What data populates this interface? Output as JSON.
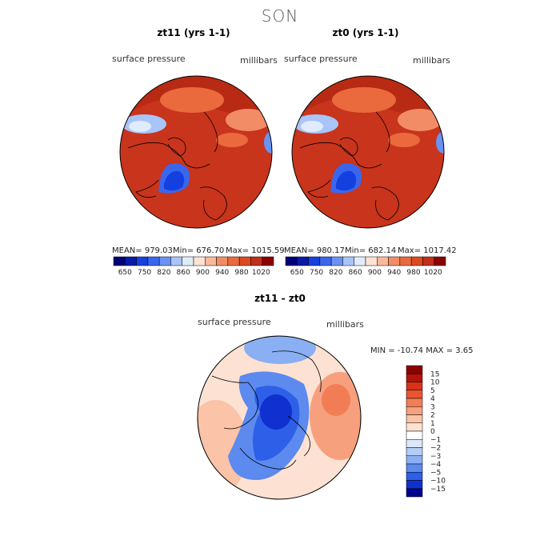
{
  "season": "SON",
  "colors": {
    "dark_red": "#8b0000",
    "red": "#c0301a",
    "orange_red": "#dd4a1f",
    "blue": "#1540e0",
    "navy": "#00007a",
    "white": "#ffffff"
  },
  "chart_data": [
    {
      "type": "heatmap",
      "title": "zt11 (yrs 1-1)",
      "variable_label": "surface pressure",
      "units_label": "millibars",
      "stats": {
        "mean": "MEAN= 979.03",
        "min": "Min= 676.70",
        "max": "Max= 1015.59"
      },
      "colorbar": {
        "levels": [
          650,
          750,
          820,
          860,
          900,
          940,
          980,
          1020
        ],
        "tick_labels": [
          "650",
          "750",
          "820",
          "860",
          "900",
          "940",
          "980",
          "1020"
        ],
        "colors": [
          "#00007a",
          "#0a1aa8",
          "#1540e0",
          "#3a66ee",
          "#6a92f4",
          "#a8c4f8",
          "#e0ecfc",
          "#fde3d4",
          "#f8b89a",
          "#f28c66",
          "#ea6a3e",
          "#dd4a1f",
          "#c0301a",
          "#8b0000"
        ]
      }
    },
    {
      "type": "heatmap",
      "title": "zt0 (yrs 1-1)",
      "variable_label": "surface pressure",
      "units_label": "millibars",
      "stats": {
        "mean": "MEAN= 980.17",
        "min": "Min= 682.14",
        "max": "Max= 1017.42"
      },
      "colorbar": {
        "levels": [
          650,
          750,
          820,
          860,
          900,
          940,
          980,
          1020
        ],
        "tick_labels": [
          "650",
          "750",
          "820",
          "860",
          "900",
          "940",
          "980",
          "1020"
        ],
        "colors": [
          "#00007a",
          "#0a1aa8",
          "#1540e0",
          "#3a66ee",
          "#6a92f4",
          "#a8c4f8",
          "#e0ecfc",
          "#fde3d4",
          "#f8b89a",
          "#f28c66",
          "#ea6a3e",
          "#dd4a1f",
          "#c0301a",
          "#8b0000"
        ]
      }
    },
    {
      "type": "heatmap",
      "title": "zt11 - zt0",
      "variable_label": "surface pressure",
      "units_label": "millibars",
      "stats": {
        "min_max": "MIN = -10.74 MAX =   3.65"
      },
      "colorbar": {
        "tick_labels": [
          "15",
          "10",
          "5",
          "4",
          "3",
          "2",
          "1",
          "0",
          "−1",
          "−2",
          "−3",
          "−4",
          "−5",
          "−10",
          "−15"
        ],
        "colors": [
          "#8b0000",
          "#b3140a",
          "#d8321b",
          "#e85530",
          "#f27d55",
          "#f7a07e",
          "#fbc3a7",
          "#fde2d3",
          "#ffffff",
          "#dbe7fb",
          "#b4cdf7",
          "#8aaff2",
          "#5c8aee",
          "#2e5fe8",
          "#1030d0",
          "#00008b"
        ]
      }
    }
  ]
}
